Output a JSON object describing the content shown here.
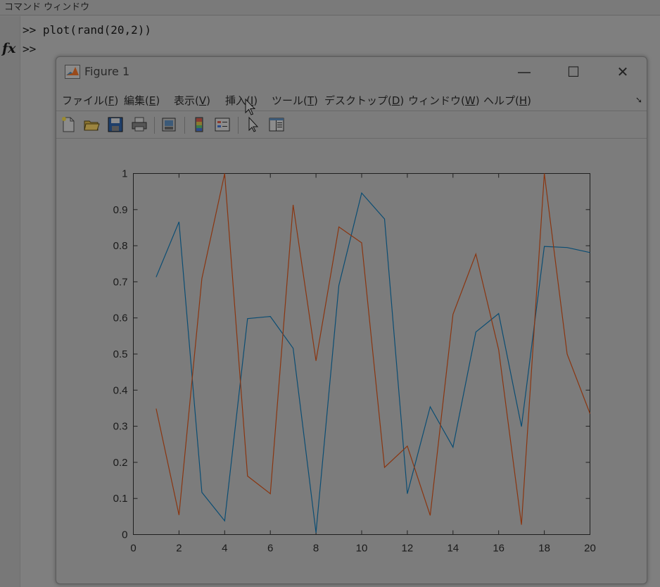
{
  "command_window": {
    "title": "コマンド ウィンドウ",
    "lines": [
      ">> plot(rand(20,2))",
      ">>"
    ],
    "fx_label": "fx"
  },
  "figure": {
    "title": "Figure 1",
    "window_controls": {
      "minimize": "—",
      "maximize": "☐",
      "close": "✕"
    },
    "menu": [
      {
        "label": "ファイル(",
        "acc": "F",
        "tail": ")"
      },
      {
        "label": "編集(",
        "acc": "E",
        "tail": ")"
      },
      {
        "label": "表示(",
        "acc": "V",
        "tail": ")"
      },
      {
        "label": "挿入(",
        "acc": "I",
        "tail": ")"
      },
      {
        "label": "ツール(",
        "acc": "T",
        "tail": ")"
      },
      {
        "label": "デスクトップ(",
        "acc": "D",
        "tail": ")"
      },
      {
        "label": "ウィンドウ(",
        "acc": "W",
        "tail": ")"
      },
      {
        "label": "ヘルプ(",
        "acc": "H",
        "tail": ")"
      }
    ],
    "toolbar_icons": [
      "new-figure-icon",
      "open-file-icon",
      "save-icon",
      "print-icon",
      "print-preview-icon",
      "colorbar-icon",
      "legend-icon",
      "pointer-icon",
      "property-inspector-icon"
    ]
  },
  "chart_data": {
    "type": "line",
    "xlim": [
      0,
      20
    ],
    "ylim": [
      0,
      1
    ],
    "xticks": [
      0,
      2,
      4,
      6,
      8,
      10,
      12,
      14,
      16,
      18,
      20
    ],
    "yticks": [
      0,
      0.1,
      0.2,
      0.3,
      0.4,
      0.5,
      0.6,
      0.7,
      0.8,
      0.9,
      1
    ],
    "x": [
      1,
      2,
      3,
      4,
      5,
      6,
      7,
      8,
      9,
      10,
      11,
      12,
      13,
      14,
      15,
      16,
      17,
      18,
      19,
      20
    ],
    "series": [
      {
        "color": "#0b4d73",
        "values": [
          0.713,
          0.866,
          0.117,
          0.038,
          0.598,
          0.604,
          0.516,
          0.005,
          0.69,
          0.946,
          0.874,
          0.113,
          0.354,
          0.242,
          0.561,
          0.612,
          0.299,
          0.798,
          0.795,
          0.781
        ]
      },
      {
        "color": "#8a3510",
        "values": [
          0.349,
          0.054,
          0.709,
          1.0,
          0.162,
          0.113,
          0.913,
          0.481,
          0.852,
          0.808,
          0.186,
          0.245,
          0.053,
          0.61,
          0.777,
          0.512,
          0.027,
          1.0,
          0.5,
          0.335
        ]
      }
    ]
  }
}
